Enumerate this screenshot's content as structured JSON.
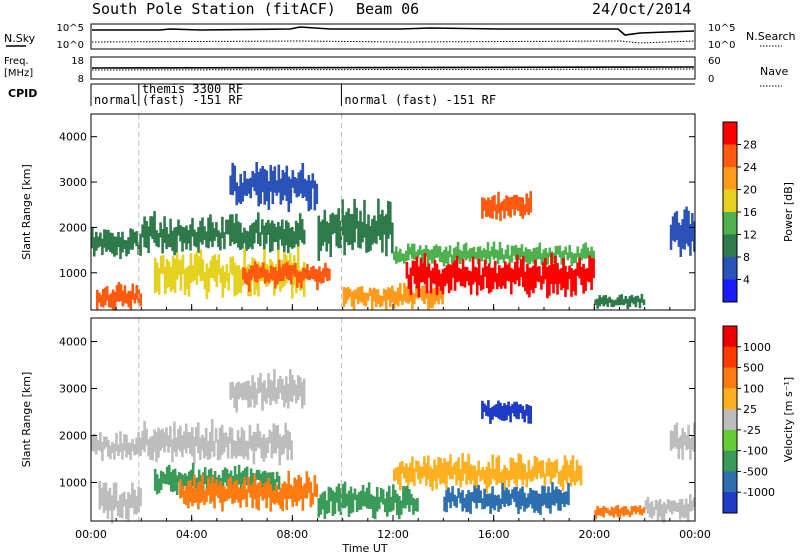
{
  "header": {
    "station": "South Pole Station (fitACF)",
    "beam": "Beam 06",
    "date": "24/Oct/2014"
  },
  "top_panels": {
    "nsky_label": "N.Sky",
    "nsearch_label": "N.Search",
    "nsky_ticks": [
      "10^5",
      "10^0"
    ],
    "nsearch_ticks": [
      "10^5",
      "10^0"
    ],
    "freq_label": "Freq.",
    "freq_unit": "[MHz]",
    "freq_ticks": [
      "18",
      "8"
    ],
    "nave_label": "Nave",
    "nave_ticks": [
      "60",
      "0"
    ],
    "cpid_label": "CPID",
    "cpid_segments": [
      {
        "start_h": 0.0,
        "end_h": 1.9,
        "text": [
          "normal"
        ]
      },
      {
        "start_h": 1.9,
        "end_h": 9.95,
        "text": [
          "themis 3300 RF",
          "(fast) -151 RF"
        ]
      },
      {
        "start_h": 9.95,
        "end_h": 24.0,
        "text": [
          "normal (fast) -151 RF"
        ]
      }
    ]
  },
  "chart_data": [
    {
      "type": "heatmap",
      "title": "",
      "ylabel": "Slant Range [km]",
      "xlabel": "",
      "xlim": [
        0,
        24
      ],
      "ylim": [
        180,
        4500
      ],
      "yticks": [
        "1000",
        "2000",
        "3000",
        "4000"
      ],
      "colorbar": {
        "label": "Power [dB]",
        "ticks": [
          "4",
          "8",
          "12",
          "16",
          "20",
          "24",
          "28"
        ],
        "colors": [
          "#1a1aff",
          "#2a52b8",
          "#2f7a4a",
          "#4fb04f",
          "#e6d020",
          "#ff9a1a",
          "#ff5a10",
          "#ff0000"
        ]
      },
      "regions": [
        {
          "t0": 0.0,
          "t1": 2.0,
          "r0": 1400,
          "r1": 1900,
          "level": 2
        },
        {
          "t0": 0.2,
          "t1": 2.0,
          "r0": 250,
          "r1": 700,
          "level": 6
        },
        {
          "t0": 2.0,
          "t1": 8.5,
          "r0": 1500,
          "r1": 2200,
          "level": 2
        },
        {
          "t0": 2.5,
          "t1": 8.5,
          "r0": 600,
          "r1": 1400,
          "level": 4
        },
        {
          "t0": 6.0,
          "t1": 9.5,
          "r0": 700,
          "r1": 1200,
          "level": 6
        },
        {
          "t0": 5.5,
          "t1": 9.0,
          "r0": 2500,
          "r1": 3300,
          "level": 1
        },
        {
          "t0": 9.0,
          "t1": 12.0,
          "r0": 1500,
          "r1": 2500,
          "level": 2
        },
        {
          "t0": 10.0,
          "t1": 14.0,
          "r0": 250,
          "r1": 700,
          "level": 5
        },
        {
          "t0": 12.0,
          "t1": 20.0,
          "r0": 1200,
          "r1": 1600,
          "level": 3
        },
        {
          "t0": 12.5,
          "t1": 20.0,
          "r0": 600,
          "r1": 1300,
          "level": 7
        },
        {
          "t0": 15.5,
          "t1": 17.5,
          "r0": 2200,
          "r1": 2700,
          "level": 6
        },
        {
          "t0": 20.0,
          "t1": 22.0,
          "r0": 250,
          "r1": 500,
          "level": 2
        },
        {
          "t0": 23.0,
          "t1": 24.0,
          "r0": 1400,
          "r1": 2300,
          "level": 1
        }
      ]
    },
    {
      "type": "heatmap",
      "title": "",
      "ylabel": "Slant Range [km]",
      "xlabel": "Time UT",
      "xlim": [
        0,
        24
      ],
      "ylim": [
        180,
        4500
      ],
      "yticks": [
        "1000",
        "2000",
        "3000",
        "4000"
      ],
      "xticks": [
        "00:00",
        "04:00",
        "08:00",
        "12:00",
        "16:00",
        "20:00",
        "00:00"
      ],
      "colorbar": {
        "label": "Velocity [m s⁻¹]",
        "ticks": [
          "1000",
          "500",
          "100",
          "25",
          "-25",
          "-100",
          "-500",
          "-1000"
        ],
        "colors": [
          "#1e3cc8",
          "#2d6fb0",
          "#3a9a5a",
          "#66cc33",
          "#bdbdbd",
          "#ffb020",
          "#ff7a10",
          "#ff3a00",
          "#ee0000"
        ]
      },
      "regions": [
        {
          "t0": 0.0,
          "t1": 2.0,
          "r0": 1500,
          "r1": 2000,
          "level": 4
        },
        {
          "t0": 0.3,
          "t1": 2.0,
          "r0": 250,
          "r1": 900,
          "level": 4
        },
        {
          "t0": 2.0,
          "t1": 8.0,
          "r0": 1500,
          "r1": 2200,
          "level": 4
        },
        {
          "t0": 2.5,
          "t1": 7.5,
          "r0": 800,
          "r1": 1300,
          "level": 2
        },
        {
          "t0": 3.5,
          "t1": 9.0,
          "r0": 500,
          "r1": 1100,
          "level": 6
        },
        {
          "t0": 5.5,
          "t1": 8.5,
          "r0": 2600,
          "r1": 3300,
          "level": 4
        },
        {
          "t0": 9.0,
          "t1": 13.0,
          "r0": 300,
          "r1": 900,
          "level": 2
        },
        {
          "t0": 12.0,
          "t1": 19.5,
          "r0": 900,
          "r1": 1500,
          "level": 5
        },
        {
          "t0": 14.0,
          "t1": 19.0,
          "r0": 400,
          "r1": 900,
          "level": 1
        },
        {
          "t0": 15.5,
          "t1": 17.5,
          "r0": 2300,
          "r1": 2700,
          "level": 0
        },
        {
          "t0": 20.0,
          "t1": 22.0,
          "r0": 250,
          "r1": 500,
          "level": 6
        },
        {
          "t0": 22.0,
          "t1": 24.0,
          "r0": 250,
          "r1": 700,
          "level": 4
        },
        {
          "t0": 23.0,
          "t1": 24.0,
          "r0": 1500,
          "r1": 2200,
          "level": 4
        }
      ]
    }
  ]
}
